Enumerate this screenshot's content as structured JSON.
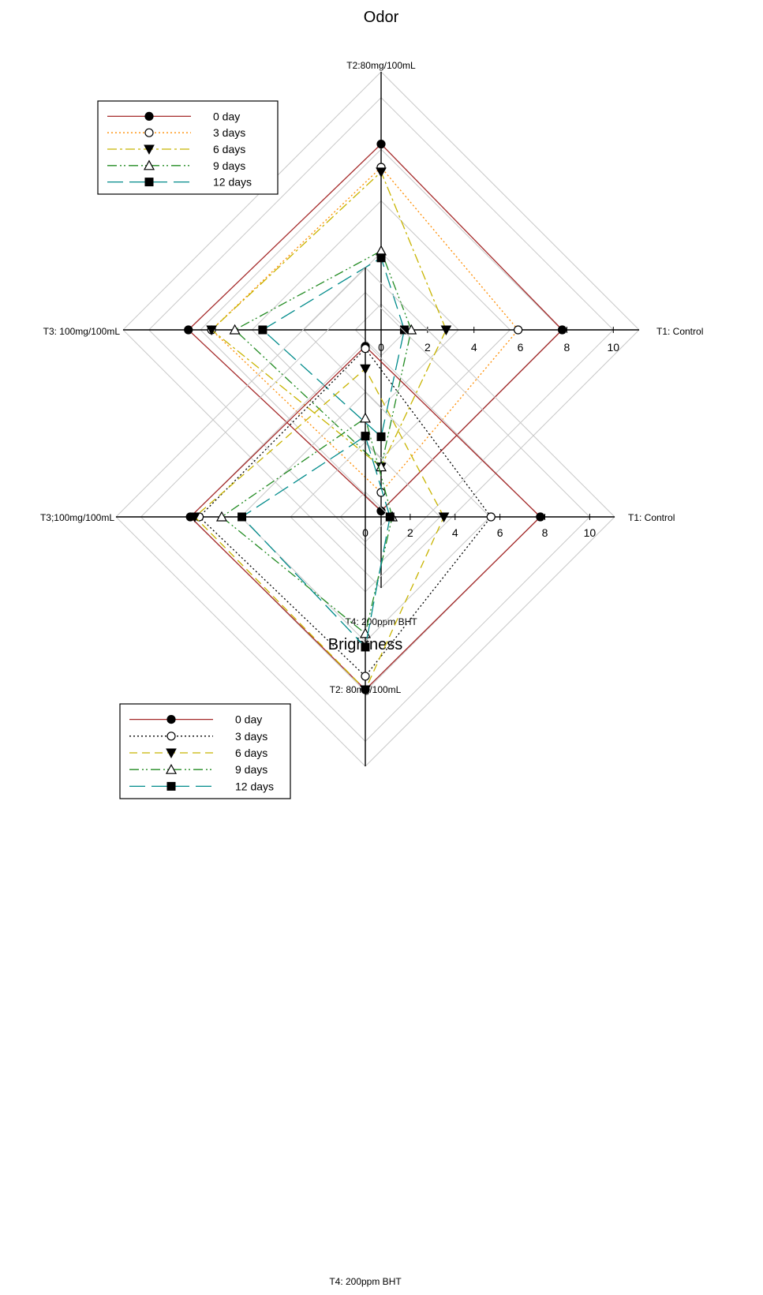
{
  "chart_data": [
    {
      "type": "radar",
      "title": "Odor",
      "axes": [
        {
          "key": "t1",
          "label": "T1: Control"
        },
        {
          "key": "t2",
          "label": "T2:80mg/100mL"
        },
        {
          "key": "t3",
          "label": "T3: 100mg/100mL"
        },
        {
          "key": "t4",
          "label": "T4: 200ppm BHT"
        }
      ],
      "ticks": [
        "0",
        "2",
        "4",
        "6",
        "8",
        "10"
      ],
      "range": [
        0,
        10
      ],
      "grid": true,
      "legend_position": "top-left",
      "series": [
        {
          "name": "0 day",
          "color": "#a52a2a",
          "dash": "solid",
          "marker": "circle-filled",
          "values": [
            7.8,
            8.0,
            8.3,
            7.8
          ]
        },
        {
          "name": "3 days",
          "color": "#ff8c00",
          "dash": "dotted",
          "marker": "circle-open",
          "values": [
            5.9,
            7.0,
            7.3,
            7.0
          ]
        },
        {
          "name": "6 days",
          "color": "#c8b400",
          "dash": "dashdot",
          "marker": "triangle-down-filled",
          "values": [
            2.8,
            6.8,
            7.3,
            5.9
          ]
        },
        {
          "name": "9 days",
          "color": "#228b22",
          "dash": "dashdotdot",
          "marker": "triangle-up-open",
          "values": [
            1.3,
            3.4,
            6.3,
            5.9
          ]
        },
        {
          "name": "12 days",
          "color": "#008b8b",
          "dash": "longdash",
          "marker": "square-filled",
          "values": [
            1.0,
            3.1,
            5.1,
            4.6
          ]
        }
      ]
    },
    {
      "type": "radar",
      "title": "Brightness",
      "axes": [
        {
          "key": "t1",
          "label": "T1: Control"
        },
        {
          "key": "t2",
          "label": "T2: 80mg/100mL"
        },
        {
          "key": "t3",
          "label": "T3;100mg/100mL"
        },
        {
          "key": "t4",
          "label": "T4: 200ppm BHT"
        }
      ],
      "ticks": [
        "0",
        "2",
        "4",
        "6",
        "8",
        "10"
      ],
      "range": [
        0,
        10
      ],
      "grid": true,
      "legend_position": "top-left",
      "series": [
        {
          "name": "0 day",
          "color": "#a52a2a",
          "dash": "solid",
          "marker": "circle-filled",
          "values": [
            7.8,
            7.6,
            7.8,
            7.7
          ]
        },
        {
          "name": "3 days",
          "color": "#000000",
          "dash": "dotted",
          "marker": "circle-open",
          "values": [
            5.6,
            7.5,
            7.4,
            7.1
          ]
        },
        {
          "name": "6 days",
          "color": "#c8b400",
          "dash": "dashed",
          "marker": "triangle-down-filled",
          "values": [
            3.5,
            6.6,
            7.6,
            7.7
          ]
        },
        {
          "name": "9 days",
          "color": "#228b22",
          "dash": "dashdotdot",
          "marker": "triangle-up-open",
          "values": [
            1.2,
            4.4,
            6.4,
            5.2
          ]
        },
        {
          "name": "12 days",
          "color": "#008b8b",
          "dash": "longdash",
          "marker": "square-filled",
          "values": [
            1.1,
            3.6,
            5.5,
            5.8
          ]
        }
      ]
    }
  ]
}
